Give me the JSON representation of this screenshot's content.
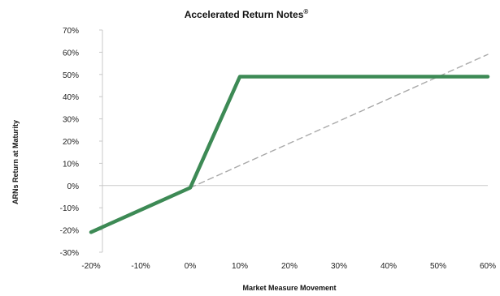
{
  "chart_data": {
    "type": "line",
    "title": "Accelerated Return Notes",
    "title_mark": "®",
    "xlabel": "Market Measure Movement",
    "ylabel": "ARNs Return at Maturity",
    "xlim": [
      -20,
      60
    ],
    "ylim": [
      -30,
      70
    ],
    "x_ticks": [
      -20,
      -10,
      0,
      10,
      20,
      30,
      40,
      50,
      60
    ],
    "x_tick_labels": [
      "-20%",
      "-10%",
      "0%",
      "10%",
      "20%",
      "30%",
      "40%",
      "50%",
      "60%"
    ],
    "y_ticks": [
      -30,
      -20,
      -10,
      0,
      10,
      20,
      30,
      40,
      50,
      60,
      70
    ],
    "y_tick_labels": [
      "-30%",
      "-20%",
      "-10%",
      "0%",
      "10%",
      "20%",
      "30%",
      "40%",
      "50%",
      "60%",
      "70%"
    ],
    "grid": false,
    "series": [
      {
        "style": "solid",
        "color": "#3d8a55",
        "x": [
          -20,
          0,
          10,
          60
        ],
        "y": [
          -21,
          -1,
          49,
          49
        ]
      },
      {
        "style": "dashed",
        "color": "#a8a8a8",
        "x": [
          0,
          60
        ],
        "y": [
          -1,
          59
        ]
      }
    ]
  }
}
